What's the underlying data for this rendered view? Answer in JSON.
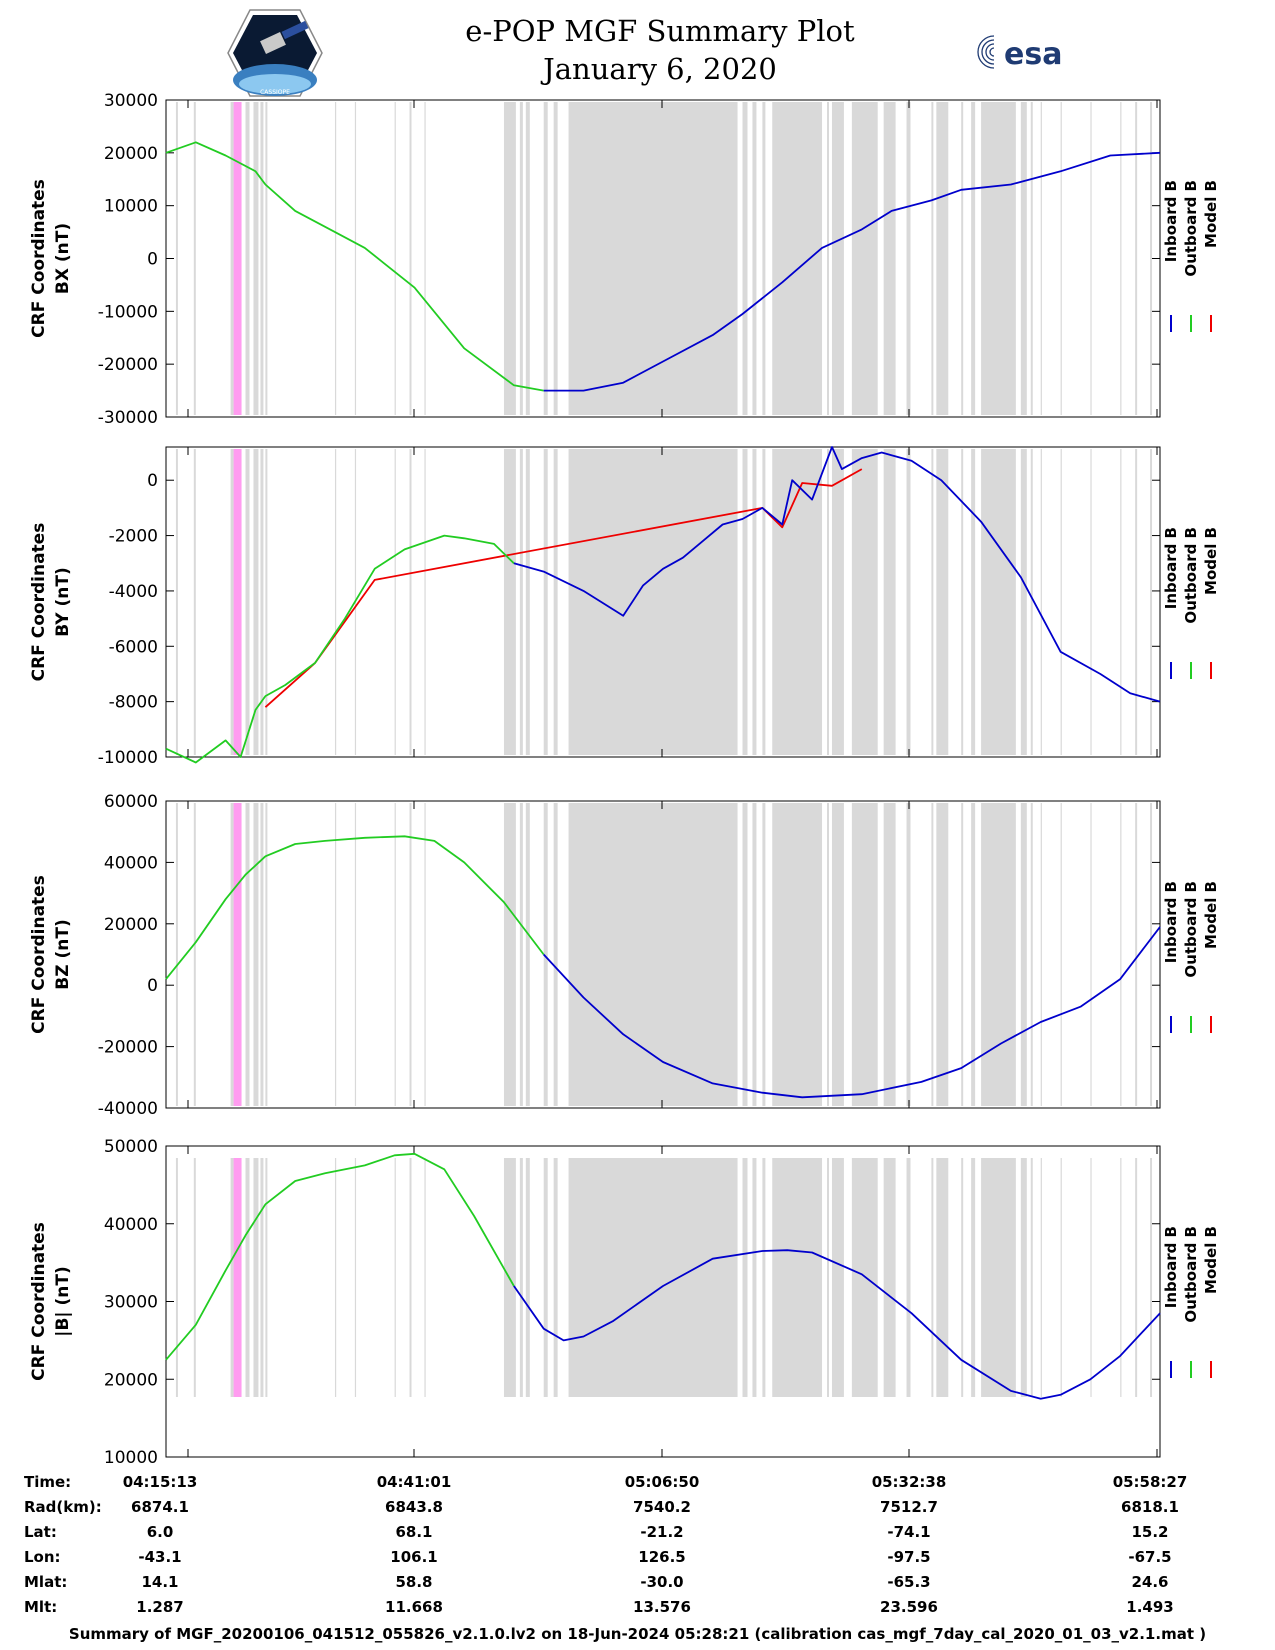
{
  "header": {
    "title_line1": "e-POP MGF Summary Plot",
    "title_line2": "January 6, 2020",
    "logo_left": "cassiope-mission-logo",
    "logo_left_text": "CASSIOPE",
    "logo_right": "esa-logo",
    "logo_right_text": "esa"
  },
  "colors": {
    "inboard": "#0000cc",
    "outboard": "#22cc22",
    "model": "#ee0000",
    "shading": "#d9d9d9",
    "highlight": "#ff9cf0"
  },
  "legend": {
    "entries": [
      "Inboard B",
      "Outboard B",
      "Model B"
    ]
  },
  "chart_data": [
    {
      "type": "line",
      "title": "",
      "ylabel_line1": "CRF Coordinates",
      "ylabel_line2": "BX (nT)",
      "ylim": [
        -30000,
        30000
      ],
      "yticks": [
        30000,
        20000,
        10000,
        0,
        -10000,
        -20000,
        -30000
      ],
      "xlim": [
        0,
        1
      ],
      "switch_at": 0.38,
      "series": [
        {
          "name": "Outboard B",
          "color": "outboard",
          "x": [
            0,
            0.03,
            0.06,
            0.09,
            0.1,
            0.13,
            0.17,
            0.2,
            0.25,
            0.3,
            0.35,
            0.38
          ],
          "y": [
            20000,
            22000,
            19500,
            16500,
            14000,
            9000,
            5000,
            2000,
            -5500,
            -17000,
            -24000,
            -25000
          ]
        },
        {
          "name": "Inboard B",
          "color": "inboard",
          "x": [
            0.38,
            0.42,
            0.46,
            0.5,
            0.55,
            0.58,
            0.62,
            0.66,
            0.7,
            0.73,
            0.77,
            0.8,
            0.85,
            0.9,
            0.95,
            1.0
          ],
          "y": [
            -25000,
            -25000,
            -23500,
            -19500,
            -14500,
            -10500,
            -4500,
            2000,
            5500,
            9000,
            11000,
            13000,
            14000,
            16500,
            19500,
            20000
          ]
        }
      ]
    },
    {
      "type": "line",
      "title": "",
      "ylabel_line1": "CRF Coordinates",
      "ylabel_line2": "BY (nT)",
      "ylim": [
        -10000,
        1200
      ],
      "yticks": [
        0,
        -2000,
        -4000,
        -6000,
        -8000,
        -10000
      ],
      "xlim": [
        0,
        1
      ],
      "switch_at": 0.35,
      "series": [
        {
          "name": "Model B",
          "color": "model",
          "x": [
            0.1,
            0.15,
            0.21,
            0.6,
            0.62,
            0.64,
            0.67,
            0.7
          ],
          "y": [
            -8200,
            -6600,
            -3600,
            -1000,
            -1700,
            -100,
            -200,
            400
          ]
        },
        {
          "name": "Outboard B",
          "color": "outboard",
          "x": [
            0,
            0.03,
            0.06,
            0.075,
            0.09,
            0.1,
            0.12,
            0.15,
            0.18,
            0.21,
            0.24,
            0.28,
            0.3,
            0.33,
            0.35
          ],
          "y": [
            -9700,
            -10200,
            -9400,
            -10000,
            -8300,
            -7800,
            -7400,
            -6600,
            -5000,
            -3200,
            -2500,
            -2000,
            -2100,
            -2300,
            -3000
          ]
        },
        {
          "name": "Inboard B",
          "color": "inboard",
          "x": [
            0.35,
            0.38,
            0.42,
            0.46,
            0.48,
            0.5,
            0.52,
            0.54,
            0.56,
            0.58,
            0.6,
            0.62,
            0.63,
            0.65,
            0.67,
            0.68,
            0.7,
            0.72,
            0.75,
            0.78,
            0.82,
            0.86,
            0.9,
            0.94,
            0.97,
            1.0
          ],
          "y": [
            -3000,
            -3300,
            -4000,
            -4900,
            -3800,
            -3200,
            -2800,
            -2200,
            -1600,
            -1400,
            -1000,
            -1600,
            0,
            -700,
            1200,
            400,
            800,
            1000,
            700,
            0,
            -1500,
            -3500,
            -6200,
            -7000,
            -7700,
            -8000
          ]
        }
      ]
    },
    {
      "type": "line",
      "title": "",
      "ylabel_line1": "CRF Coordinates",
      "ylabel_line2": "BZ (nT)",
      "ylim": [
        -40000,
        60000
      ],
      "yticks": [
        60000,
        40000,
        20000,
        0,
        -20000,
        -40000
      ],
      "xlim": [
        0,
        1
      ],
      "switch_at": 0.38,
      "series": [
        {
          "name": "Outboard B",
          "color": "outboard",
          "x": [
            0,
            0.03,
            0.06,
            0.08,
            0.1,
            0.13,
            0.16,
            0.2,
            0.24,
            0.27,
            0.3,
            0.34,
            0.38
          ],
          "y": [
            2000,
            14000,
            28000,
            36000,
            42000,
            46000,
            47000,
            48000,
            48500,
            47000,
            40000,
            27000,
            10000
          ]
        },
        {
          "name": "Inboard B",
          "color": "inboard",
          "x": [
            0.38,
            0.42,
            0.46,
            0.5,
            0.55,
            0.6,
            0.64,
            0.7,
            0.76,
            0.8,
            0.84,
            0.88,
            0.92,
            0.96,
            1.0
          ],
          "y": [
            10000,
            -4000,
            -16000,
            -25000,
            -32000,
            -35000,
            -36500,
            -35500,
            -31500,
            -27000,
            -19000,
            -12000,
            -7000,
            2000,
            19000
          ]
        }
      ]
    },
    {
      "type": "line",
      "title": "",
      "ylabel_line1": "CRF Coordinates",
      "ylabel_line2": "|B| (nT)",
      "ylim": [
        10000,
        50000
      ],
      "yticks": [
        50000,
        40000,
        30000,
        20000,
        10000
      ],
      "xlim": [
        0,
        1
      ],
      "switch_at": 0.35,
      "series": [
        {
          "name": "Outboard B",
          "color": "outboard",
          "x": [
            0,
            0.03,
            0.06,
            0.08,
            0.1,
            0.13,
            0.16,
            0.2,
            0.23,
            0.25,
            0.28,
            0.31,
            0.35
          ],
          "y": [
            22500,
            27000,
            34000,
            38500,
            42500,
            45500,
            46500,
            47500,
            48800,
            49000,
            47000,
            41000,
            32000
          ]
        },
        {
          "name": "Inboard B",
          "color": "inboard",
          "x": [
            0.35,
            0.38,
            0.4,
            0.42,
            0.45,
            0.5,
            0.55,
            0.6,
            0.625,
            0.65,
            0.7,
            0.75,
            0.8,
            0.85,
            0.88,
            0.9,
            0.93,
            0.96,
            1.0
          ],
          "y": [
            32000,
            26500,
            25000,
            25500,
            27500,
            32000,
            35500,
            36500,
            36600,
            36300,
            33500,
            28500,
            22500,
            18500,
            17500,
            18000,
            20000,
            23000,
            28500
          ]
        }
      ]
    }
  ],
  "table": {
    "row_labels": [
      "Time:",
      "Rad(km):",
      "Lat:",
      "Lon:",
      "Mlat:",
      "Mlt:"
    ],
    "columns": [
      {
        "Time": "04:15:13",
        "Rad": "6874.1",
        "Lat": "6.0",
        "Lon": "-43.1",
        "Mlat": "14.1",
        "Mlt": "1.287"
      },
      {
        "Time": "04:41:01",
        "Rad": "6843.8",
        "Lat": "68.1",
        "Lon": "106.1",
        "Mlat": "58.8",
        "Mlt": "11.668"
      },
      {
        "Time": "05:06:50",
        "Rad": "7540.2",
        "Lat": "-21.2",
        "Lon": "126.5",
        "Mlat": "-30.0",
        "Mlt": "13.576"
      },
      {
        "Time": "05:32:38",
        "Rad": "7512.7",
        "Lat": "-74.1",
        "Lon": "-97.5",
        "Mlat": "-65.3",
        "Mlt": "23.596"
      },
      {
        "Time": "05:58:27",
        "Rad": "6818.1",
        "Lat": "15.2",
        "Lon": "-67.5",
        "Mlat": "24.6",
        "Mlt": "1.493"
      }
    ]
  },
  "footer": "Summary of MGF_20200106_041512_055826_v2.1.0.lv2 on 18-Jun-2024 05:28:21 (calibration cas_mgf_7day_cal_2020_01_03_v2.1.mat )"
}
